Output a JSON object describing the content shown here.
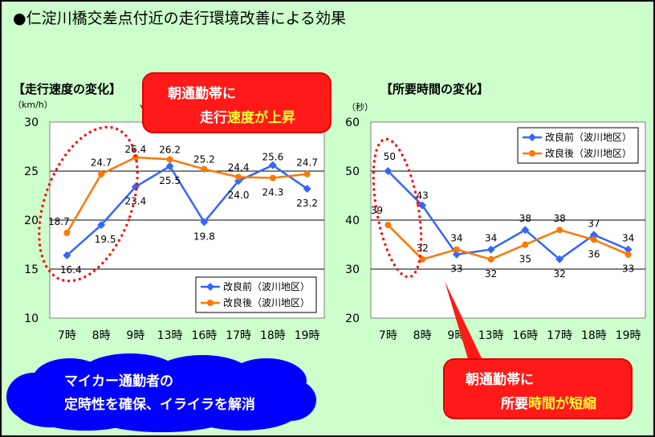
{
  "title": "●仁淀川橋交差点付近の走行環境改善による効果",
  "colors": {
    "before": "#3366ff",
    "after": "#ff7700",
    "accent_red": "#ff1a1a",
    "dashed_ellipse": "#ff0000",
    "background": "#ccffcc",
    "cloud": "#0000ff"
  },
  "chart_data": [
    {
      "type": "line",
      "title": "【走行速度の変化】",
      "ylabel": "（km/h）",
      "categories": [
        "7時",
        "8時",
        "9時",
        "13時",
        "16時",
        "17時",
        "18時",
        "19時"
      ],
      "ylim": [
        10,
        30
      ],
      "yticks": [
        "10",
        "15",
        "20",
        "25",
        "30"
      ],
      "grid": true,
      "legend_position": "bottom-right",
      "series": [
        {
          "name": "改良前（波川地区）",
          "values": [
            16.4,
            19.5,
            23.4,
            25.5,
            19.8,
            24.0,
            25.6,
            23.2
          ],
          "labels": [
            "16.4",
            "19.5",
            "23.4",
            "25.5",
            "19.8",
            "24.0",
            "25.6",
            "23.2"
          ]
        },
        {
          "name": "改良後（波川地区）",
          "values": [
            18.7,
            24.7,
            26.4,
            26.2,
            25.2,
            24.4,
            24.3,
            24.7
          ],
          "labels": [
            "18.7",
            "24.7",
            "26.4",
            "26.2",
            "25.2",
            "24.4",
            "24.3",
            "24.7"
          ]
        }
      ]
    },
    {
      "type": "line",
      "title": "【所要時間の変化】",
      "ylabel": "（秒）",
      "categories": [
        "7時",
        "8時",
        "9時",
        "13時",
        "16時",
        "17時",
        "18時",
        "19時"
      ],
      "ylim": [
        20,
        60
      ],
      "yticks": [
        "20",
        "30",
        "40",
        "50",
        "60"
      ],
      "grid": true,
      "legend_position": "top-right",
      "series": [
        {
          "name": "改良前（波川地区）",
          "values": [
            50,
            43,
            33,
            34,
            38,
            32,
            37,
            34
          ],
          "labels": [
            "50",
            "43",
            "33",
            "34",
            "38",
            "32",
            "37",
            "34"
          ]
        },
        {
          "name": "改良後（波川地区）",
          "values": [
            39,
            32,
            34,
            32,
            35,
            38,
            36,
            33
          ],
          "labels": [
            "39",
            "32",
            "34",
            "32",
            "35",
            "38",
            "36",
            "33"
          ]
        }
      ]
    }
  ],
  "callouts": {
    "speed": {
      "line1": "朝通勤帯に",
      "line2_prefix": "走行",
      "line2_highlight": "速度が上昇"
    },
    "time": {
      "line1": "朝通勤帯に",
      "line2_prefix": "所要",
      "line2_highlight": "時間が短縮"
    },
    "cloud": {
      "line1": "マイカー通勤者の",
      "line2": "定時性を確保、イライラを解消"
    }
  }
}
